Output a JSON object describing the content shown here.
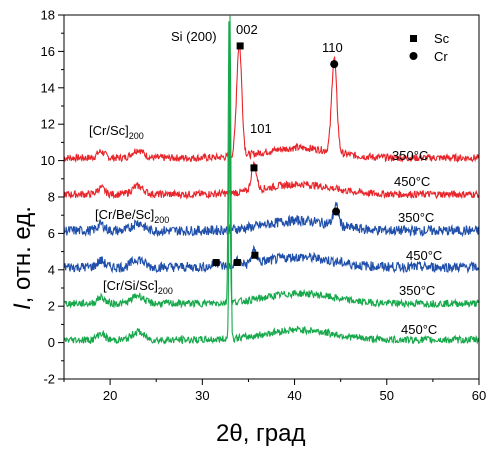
{
  "chart_data": {
    "type": "line",
    "xlabel": "2θ, град",
    "ylabel_italic": "I",
    "ylabel_rest": ", отн. ед.",
    "xlim": [
      15,
      60
    ],
    "ylim": [
      -2,
      18
    ],
    "xticks": [
      20,
      30,
      40,
      50,
      60
    ],
    "yticks": [
      -2,
      0,
      2,
      4,
      6,
      8,
      10,
      12,
      14,
      16,
      18
    ],
    "grid": false,
    "legend": {
      "position": "top-right",
      "entries": [
        {
          "label": "Sc",
          "marker": "square"
        },
        {
          "label": "Cr",
          "marker": "circle"
        }
      ]
    },
    "colors": {
      "red": "#e8252b",
      "blue": "#1f4faa",
      "green": "#16a84a"
    },
    "series": [
      {
        "color": "red",
        "offset": 10,
        "temperature": "350°C",
        "peaks": [
          {
            "x": 34.0,
            "y": 16.3
          },
          {
            "x": 44.3,
            "y": 15.3
          }
        ]
      },
      {
        "color": "red",
        "offset": 8,
        "temperature": "450°C",
        "peaks": [
          {
            "x": 35.6,
            "y": 9.6
          }
        ]
      },
      {
        "color": "blue",
        "offset": 6,
        "temperature": "350°C",
        "peaks": [
          {
            "x": 44.5,
            "y": 7.2
          }
        ]
      },
      {
        "color": "blue",
        "offset": 4,
        "temperature": "450°C",
        "peaks": [
          {
            "x": 31.5,
            "y": 4.4
          },
          {
            "x": 33.8,
            "y": 4.4
          },
          {
            "x": 35.6,
            "y": 4.8
          }
        ]
      },
      {
        "color": "green",
        "offset": 2,
        "temperature": "350°C",
        "peaks": [
          {
            "x": 32.9,
            "y": 18.0
          }
        ]
      },
      {
        "color": "green",
        "offset": 0,
        "temperature": "450°C",
        "peaks": [
          {
            "x": 33.0,
            "y": 18.0
          }
        ]
      }
    ],
    "markers": [
      {
        "type": "square",
        "x": 34.1,
        "y": 16.3
      },
      {
        "type": "circle",
        "x": 44.3,
        "y": 15.3
      },
      {
        "type": "square",
        "x": 35.6,
        "y": 9.6
      },
      {
        "type": "circle",
        "x": 44.5,
        "y": 7.2
      },
      {
        "type": "square",
        "x": 31.5,
        "y": 4.4
      },
      {
        "type": "square",
        "x": 33.8,
        "y": 4.4
      },
      {
        "type": "square",
        "x": 35.7,
        "y": 4.8
      }
    ],
    "annotations": {
      "si200": "Si (200)",
      "p002": "002",
      "p110": "110",
      "p101": "101",
      "sample_cr_sc": "[Cr/Sc]",
      "sample_cr_be_sc": "[Cr/Be/Sc]",
      "sample_cr_si_sc": "[Cr/Si/Sc]",
      "sample_sub": "200"
    }
  }
}
